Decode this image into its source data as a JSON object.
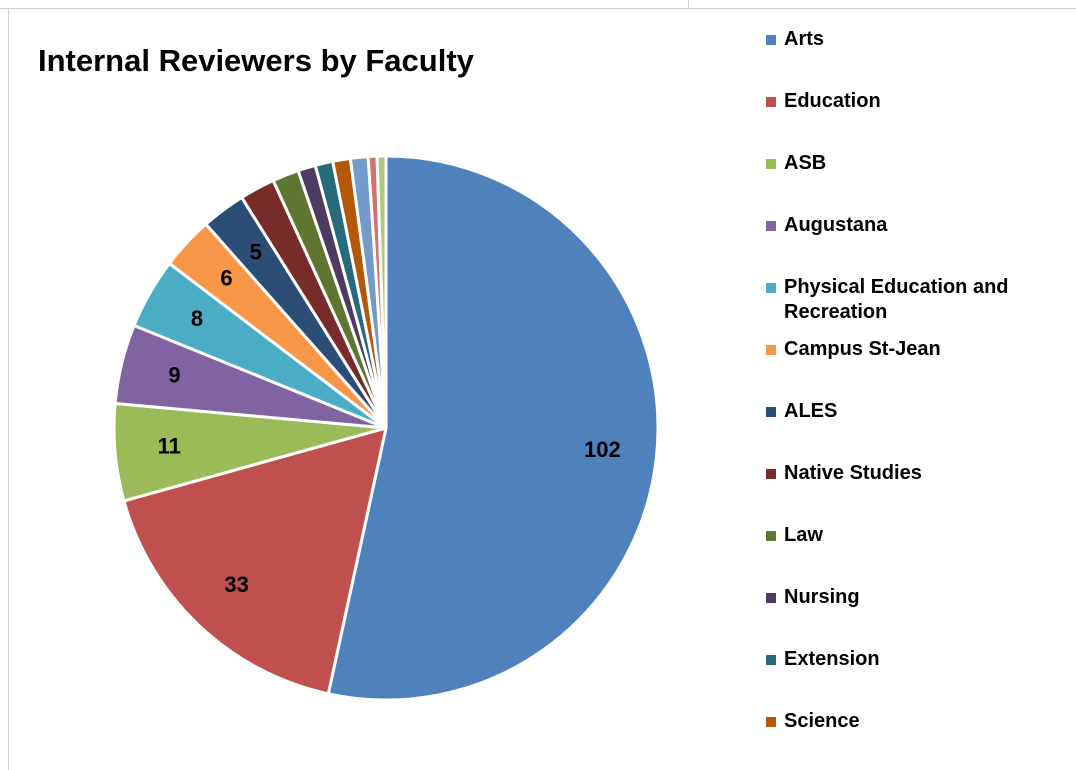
{
  "chart_data": {
    "type": "pie",
    "title": "Internal Reviewers by Faculty",
    "categories": [
      "Arts",
      "Education",
      "ASB",
      "Augustana",
      "Physical Education and Recreation",
      "Campus St-Jean",
      "ALES",
      "Native Studies",
      "Law",
      "Nursing",
      "Extension",
      "Science",
      null,
      null,
      null
    ],
    "values": [
      102,
      33,
      11,
      9,
      8,
      6,
      5,
      4,
      3,
      2,
      2,
      2,
      2,
      1,
      1
    ],
    "value_labels": [
      "102",
      "33",
      "11",
      "9",
      "8",
      "6",
      "5",
      null,
      null,
      null,
      null,
      null,
      null,
      null,
      null
    ],
    "colors": [
      "#4f81bd",
      "#c0504d",
      "#9bbb59",
      "#8064a2",
      "#4bacc6",
      "#f79646",
      "#2c4d75",
      "#772c2a",
      "#5f7530",
      "#4d3b62",
      "#276a7c",
      "#b65708",
      "#729aca",
      "#d37370",
      "#afc97a"
    ]
  }
}
